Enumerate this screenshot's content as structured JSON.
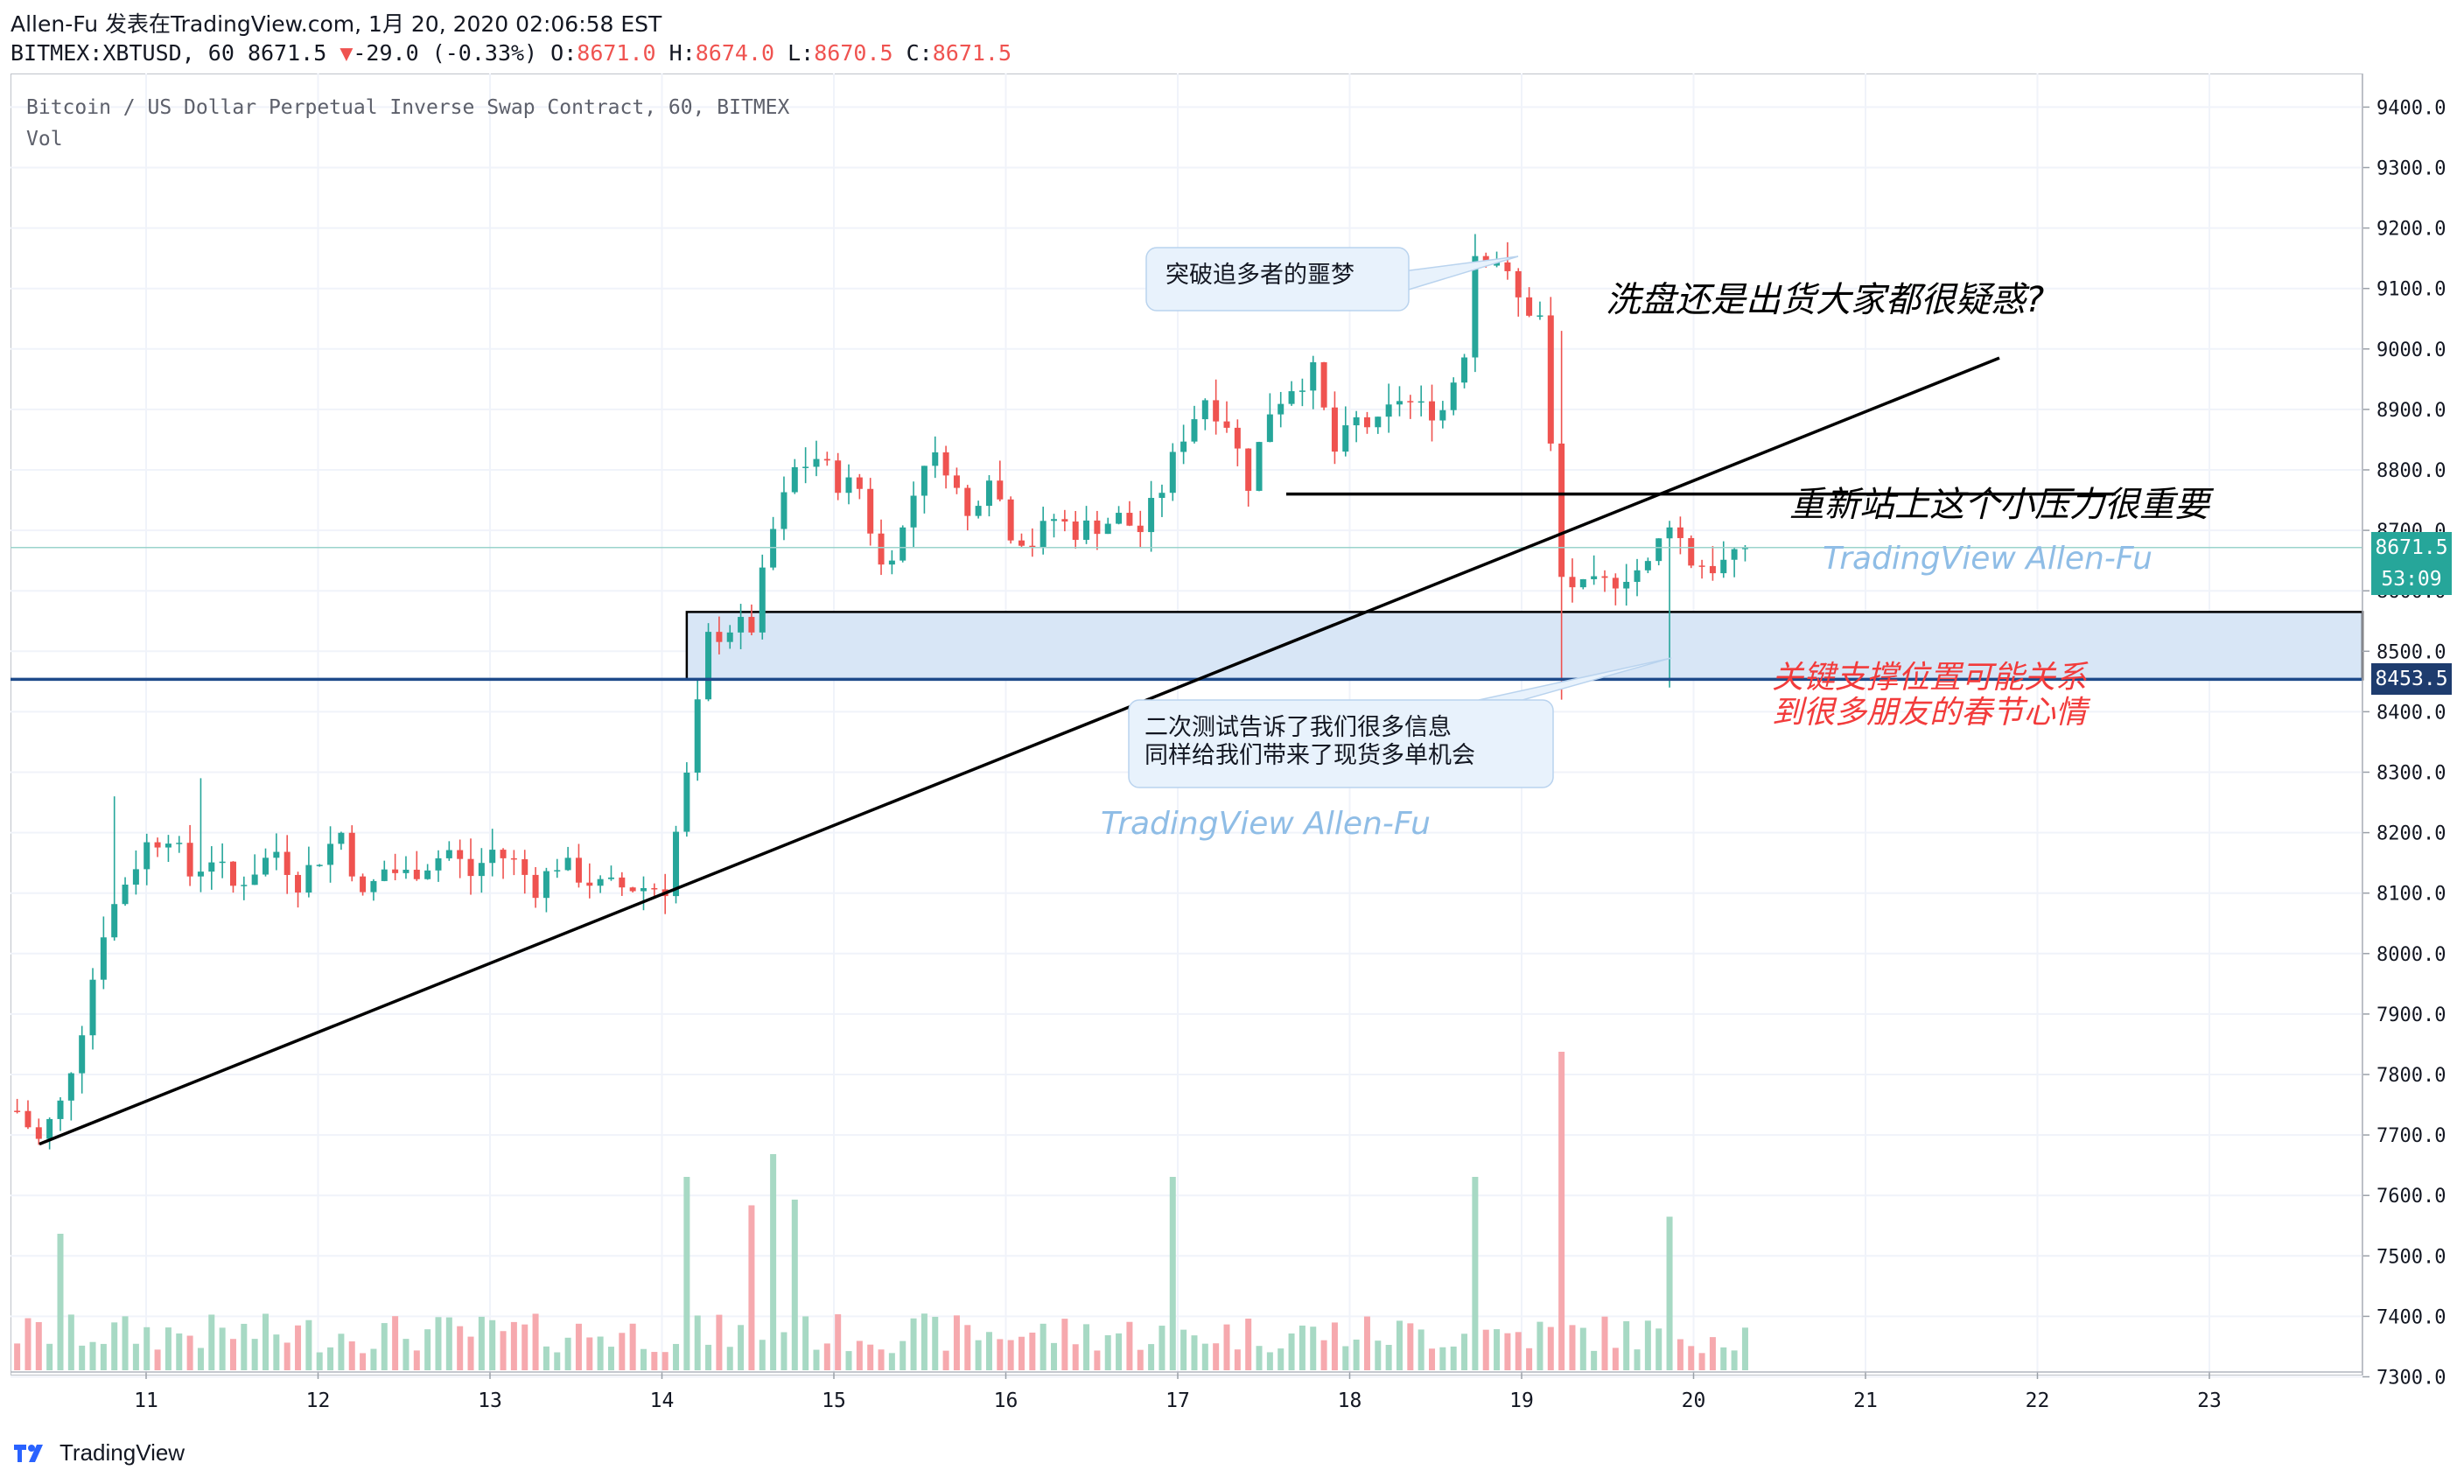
{
  "header": {
    "line1": "Allen-Fu 发表在TradingView.com, 1月 20, 2020 02:06:58 EST",
    "symbol": "BITMEX:XBTUSD, 60",
    "last": "8671.5",
    "change_arrow": "▼",
    "change": "-29.0 (-0.33%)",
    "o_label": "O:",
    "o_value": "8671.0",
    "h_label": "H:",
    "h_value": "8674.0",
    "l_label": "L:",
    "l_value": "8670.5",
    "c_label": "C:",
    "c_value": "8671.5"
  },
  "chart": {
    "title": "Bitcoin / US Dollar Perpetual Inverse Swap Contract, 60, BITMEX",
    "vol_label": "Vol",
    "colors": {
      "up": "#26a69a",
      "down": "#ef5350",
      "vol_up": "#a7d9c4",
      "vol_down": "#f6a9ae",
      "support_line": "#1e4a8a",
      "zone_fill": "#d8e6f6",
      "annotation_red": "#f23b3b",
      "watermark": "#8fbde6",
      "callout_fill": "#e8f2fc",
      "callout_border": "#b9d3ee"
    },
    "last_price_tag": "8671.5",
    "countdown_tag": "53:09",
    "support_price_tag": "8453.5"
  },
  "annotations": {
    "nightmare": "突破追多者的噩梦",
    "question": "洗盘还是出货大家都很疑惑?",
    "resistance": "重新站上这个小压力很重要",
    "watermark1": "TradingView  Allen-Fu",
    "watermark2": "TradingView  Allen-Fu",
    "retest_line1": "二次测试告诉了我们很多信息",
    "retest_line2": "同样给我们带来了现货多单机会",
    "support_line1": "关键支撑位置可能关系",
    "support_line2": "到很多朋友的春节心情"
  },
  "footer": {
    "brand": "TradingView",
    "logo_icon": "tradingview-logo-icon"
  },
  "chart_data": {
    "type": "candlestick",
    "title": "Bitcoin / US Dollar Perpetual Inverse Swap Contract, 60, BITMEX",
    "price_axis": {
      "ylim": [
        7250,
        9430
      ],
      "ticks": [
        "9400.0",
        "9300.0",
        "9200.0",
        "9100.0",
        "9000.0",
        "8900.0",
        "8800.0",
        "8700.0",
        "8600.0",
        "8500.0",
        "8400.0",
        "8300.0",
        "8200.0",
        "8100.0",
        "8000.0",
        "7900.0",
        "7800.0",
        "7700.0",
        "7600.0",
        "7500.0",
        "7400.0",
        "7300.0"
      ]
    },
    "time_axis": {
      "ticks": [
        "11",
        "12",
        "13",
        "14",
        "15",
        "16",
        "17",
        "18",
        "19",
        "20",
        "21",
        "22",
        "23"
      ]
    },
    "support_price": 8453.5,
    "zone": [
      8453.5,
      8565
    ],
    "resistance_price": 8760,
    "anchors": [
      [
        0,
        7740
      ],
      [
        2,
        7690
      ],
      [
        4,
        7750
      ],
      [
        6,
        7880
      ],
      [
        8,
        8040
      ],
      [
        10,
        8120
      ],
      [
        12,
        8180
      ],
      [
        14,
        8200
      ],
      [
        16,
        8130
      ],
      [
        18,
        8160
      ],
      [
        20,
        8110
      ],
      [
        22,
        8140
      ],
      [
        24,
        8170
      ],
      [
        26,
        8120
      ],
      [
        28,
        8160
      ],
      [
        30,
        8200
      ],
      [
        32,
        8090
      ],
      [
        34,
        8140
      ],
      [
        36,
        8130
      ],
      [
        38,
        8150
      ],
      [
        40,
        8170
      ],
      [
        42,
        8130
      ],
      [
        44,
        8170
      ],
      [
        46,
        8150
      ],
      [
        48,
        8110
      ],
      [
        50,
        8150
      ],
      [
        52,
        8130
      ],
      [
        54,
        8110
      ],
      [
        56,
        8110
      ],
      [
        58,
        8110
      ],
      [
        60,
        8110
      ],
      [
        62,
        8290
      ],
      [
        64,
        8520
      ],
      [
        66,
        8540
      ],
      [
        68,
        8540
      ],
      [
        70,
        8700
      ],
      [
        72,
        8800
      ],
      [
        74,
        8820
      ],
      [
        76,
        8780
      ],
      [
        78,
        8770
      ],
      [
        80,
        8640
      ],
      [
        82,
        8700
      ],
      [
        84,
        8820
      ],
      [
        86,
        8810
      ],
      [
        88,
        8720
      ],
      [
        90,
        8800
      ],
      [
        92,
        8700
      ],
      [
        94,
        8680
      ],
      [
        96,
        8720
      ],
      [
        98,
        8700
      ],
      [
        100,
        8710
      ],
      [
        102,
        8720
      ],
      [
        104,
        8700
      ],
      [
        106,
        8770
      ],
      [
        108,
        8860
      ],
      [
        110,
        8920
      ],
      [
        112,
        8880
      ],
      [
        114,
        8780
      ],
      [
        116,
        8900
      ],
      [
        118,
        8940
      ],
      [
        120,
        8960
      ],
      [
        122,
        8830
      ],
      [
        124,
        8880
      ],
      [
        126,
        8870
      ],
      [
        128,
        8920
      ],
      [
        130,
        8900
      ],
      [
        132,
        8900
      ],
      [
        134,
        9000
      ],
      [
        135,
        9160
      ],
      [
        137,
        9150
      ],
      [
        139,
        9080
      ],
      [
        141,
        9050
      ],
      [
        143,
        8620
      ],
      [
        145,
        8600
      ],
      [
        147,
        8610
      ],
      [
        149,
        8630
      ],
      [
        151,
        8640
      ],
      [
        153,
        8720
      ],
      [
        155,
        8650
      ],
      [
        157,
        8640
      ],
      [
        159,
        8650
      ],
      [
        160,
        8671.5
      ]
    ],
    "time_range": {
      "start_day": 10.25,
      "end_day": 20.3
    }
  }
}
